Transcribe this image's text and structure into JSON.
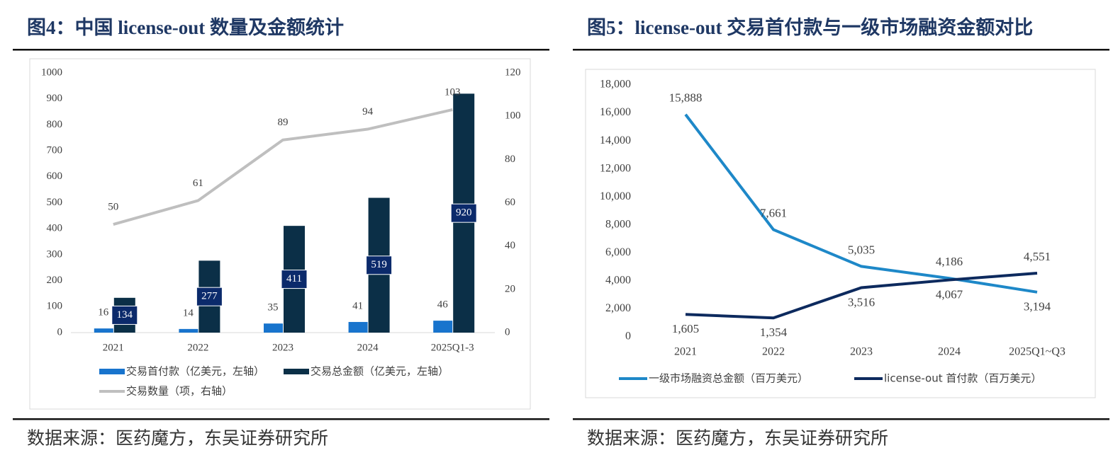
{
  "chart_data": [
    {
      "type": "bar",
      "title": "图4：中国 license-out 数量及金额统计",
      "source": "数据来源：医药魔方，东吴证券研究所",
      "categories": [
        "2021",
        "2022",
        "2023",
        "2024",
        "2025Q1-3"
      ],
      "series": [
        {
          "name": "交易首付款（亿美元，左轴）",
          "color": "#1874cd",
          "values": [
            16,
            14,
            35,
            41,
            46
          ]
        },
        {
          "name": "交易总金额（亿美元，左轴）",
          "color": "#0b2f47",
          "values": [
            134,
            277,
            411,
            519,
            920
          ]
        },
        {
          "name": "交易数量（项，右轴）",
          "color": "#bfbfbf",
          "type": "line",
          "axis": "y2",
          "values": [
            50,
            61,
            89,
            94,
            103
          ]
        }
      ],
      "ylim": [
        0,
        1000
      ],
      "yticks": [
        0,
        100,
        200,
        300,
        400,
        500,
        600,
        700,
        800,
        900,
        1000
      ],
      "y2lim": [
        0,
        120
      ],
      "y2ticks": [
        0,
        20,
        40,
        60,
        80,
        100,
        120
      ],
      "grid": false,
      "legend": "bottom"
    },
    {
      "type": "line",
      "title": "图5：license-out 交易首付款与一级市场融资金额对比",
      "source": "数据来源：医药魔方，东吴证券研究所",
      "categories": [
        "2021",
        "2022",
        "2023",
        "2024",
        "2025Q1~Q3"
      ],
      "series": [
        {
          "name": "一级市场融资总金额（百万美元）",
          "color": "#1e88c8",
          "values": [
            15888,
            7661,
            5035,
            4186,
            3194
          ],
          "value_labels": [
            "15,888",
            "7,661",
            "5,035",
            "4,186",
            "3,194"
          ]
        },
        {
          "name": "license-out 首付款（百万美元）",
          "color": "#0d2a5e",
          "values": [
            1605,
            1354,
            3516,
            4067,
            4551
          ],
          "value_labels": [
            "1,605",
            "1,354",
            "3,516",
            "4,067",
            "4,551"
          ]
        }
      ],
      "ylim": [
        0,
        18000
      ],
      "yticks": [
        0,
        {
          "value": 2000,
          "label": "2,000"
        },
        {
          "value": 4000,
          "label": "4,000"
        },
        {
          "value": 6000,
          "label": "6,000"
        },
        {
          "value": 8000,
          "label": "8,000"
        },
        {
          "value": 10000,
          "label": "10,000"
        },
        {
          "value": 12000,
          "label": "12,000"
        },
        {
          "value": 14000,
          "label": "14,000"
        },
        {
          "value": 16000,
          "label": "16,000"
        },
        {
          "value": 18000,
          "label": "18,000"
        }
      ],
      "grid": false,
      "legend": "bottom"
    }
  ]
}
